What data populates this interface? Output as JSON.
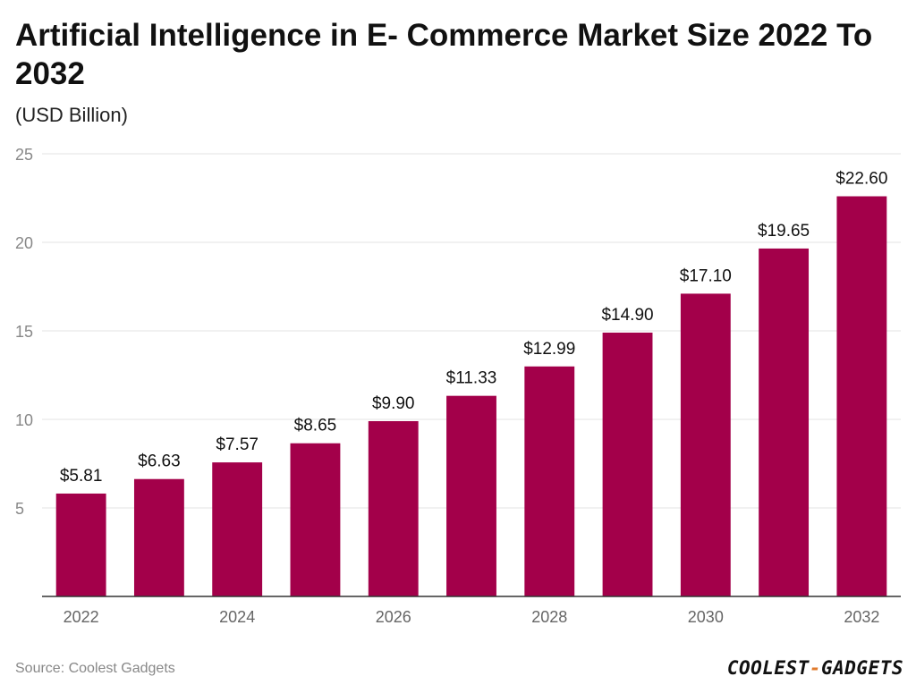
{
  "title": "Artificial Intelligence in E- Commerce Market Size 2022 To 2032",
  "subtitle": "(USD Billion)",
  "source": "Source: Coolest Gadgets",
  "brand": {
    "left": "COOLEST",
    "sep": "-",
    "right": "GADGETS"
  },
  "colors": {
    "bar": "#a3004a",
    "grid": "#e3e3e3",
    "axis": "#333333",
    "tick": "#888888",
    "label": "#111111",
    "brand_accent": "#e07a2b"
  },
  "chart_data": {
    "type": "bar",
    "categories": [
      "2022",
      "2023",
      "2024",
      "2025",
      "2026",
      "2027",
      "2028",
      "2029",
      "2030",
      "2031",
      "2032"
    ],
    "values": [
      5.81,
      6.63,
      7.57,
      8.65,
      9.9,
      11.33,
      12.99,
      14.9,
      17.1,
      19.65,
      22.6
    ],
    "value_labels": [
      "$5.81",
      "$6.63",
      "$7.57",
      "$8.65",
      "$9.90",
      "$11.33",
      "$12.99",
      "$14.90",
      "$17.10",
      "$19.65",
      "$22.60"
    ],
    "x_tick_labels": [
      "2022",
      "",
      "2024",
      "",
      "2026",
      "",
      "2028",
      "",
      "2030",
      "",
      "2032"
    ],
    "title": "Artificial Intelligence in E- Commerce Market Size 2022 To 2032",
    "ylabel": "(USD Billion)",
    "xlabel": "",
    "ylim": [
      0,
      25
    ],
    "yticks": [
      5,
      10,
      15,
      20,
      25
    ],
    "grid": true,
    "legend": "none"
  }
}
